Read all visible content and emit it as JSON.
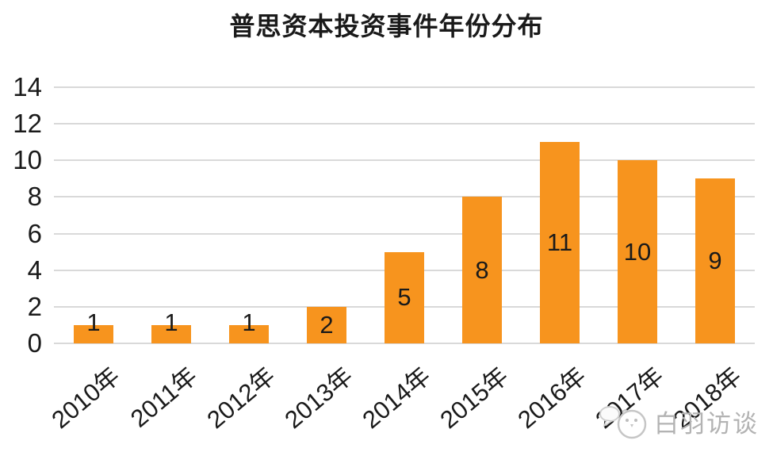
{
  "title": "普思资本投资事件年份分布",
  "watermark": {
    "text": "白羽访谈",
    "icon": "chick-mascot-icon"
  },
  "chart_data": {
    "type": "bar",
    "title": "普思资本投资事件年份分布",
    "categories": [
      "2010年",
      "2011年",
      "2012年",
      "2013年",
      "2014年",
      "2015年",
      "2016年",
      "2017年",
      "2018年"
    ],
    "values": [
      1,
      1,
      1,
      2,
      5,
      8,
      11,
      10,
      9
    ],
    "xlabel": "",
    "ylabel": "",
    "ylim": [
      0,
      14
    ],
    "yticks": [
      0,
      2,
      4,
      6,
      8,
      10,
      12,
      14
    ],
    "grid": true,
    "legend": "none",
    "value_labels": "shown, centered in bar (above bar when value is 1)",
    "bar_color": "#F7941E",
    "grid_color": "#D9D9D9",
    "text_color": "#1A1A1A",
    "watermark_color": "#B3B3B3"
  }
}
